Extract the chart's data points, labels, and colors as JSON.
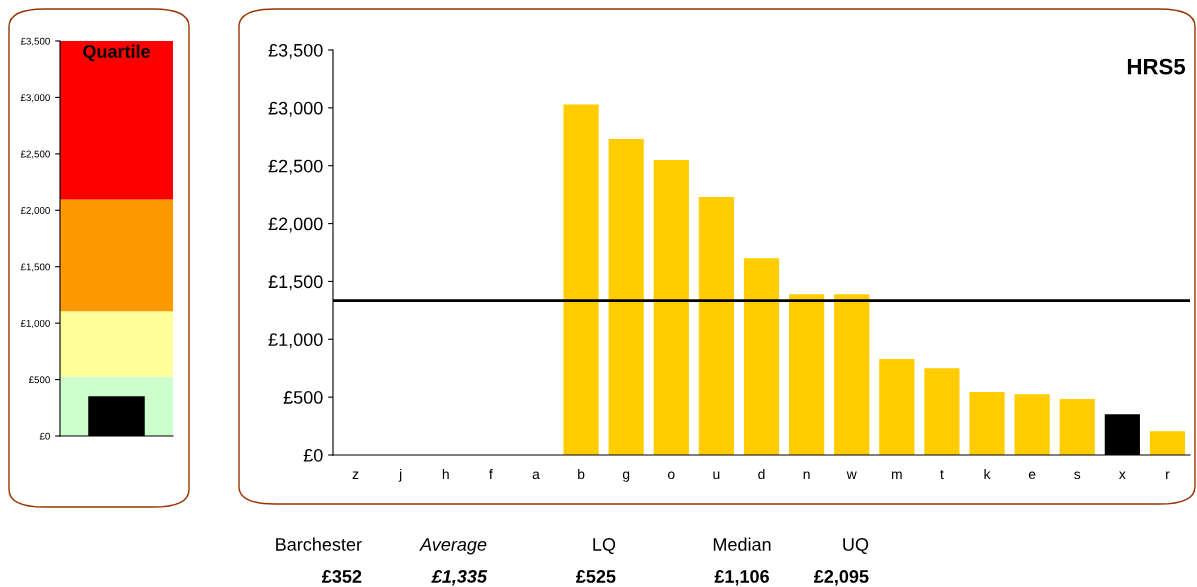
{
  "chart_data": [
    {
      "type": "bar",
      "title": "Quartile",
      "categories": [
        null
      ],
      "values": [
        352
      ],
      "colors": [
        "#000000"
      ],
      "ylim": [
        0,
        3500
      ],
      "yticks": [
        {
          "value": 0,
          "label": "£0"
        },
        {
          "value": 500,
          "label": "£500"
        },
        {
          "value": 1000,
          "label": "£1,000"
        },
        {
          "value": 1500,
          "label": "£1,500"
        },
        {
          "value": 2000,
          "label": "£2,000"
        },
        {
          "value": 2500,
          "label": "£2,500"
        },
        {
          "value": 3000,
          "label": "£3,000"
        },
        {
          "value": 3500,
          "label": "£3,500"
        }
      ],
      "bands": [
        {
          "axis": "y",
          "from": 0,
          "to": 525,
          "color": "#ccffcc"
        },
        {
          "axis": "y",
          "from": 525,
          "to": 1106,
          "color": "#ffff99"
        },
        {
          "axis": "y",
          "from": 1106,
          "to": 2095,
          "color": "#ff9900"
        },
        {
          "axis": "y",
          "from": 2095,
          "to": 3500,
          "color": "#ff0000"
        }
      ],
      "tick_labels": "y",
      "grid": false,
      "legend": false
    },
    {
      "type": "bar",
      "title": "HRS5",
      "categories": [
        "z",
        "j",
        "h",
        "f",
        "a",
        "b",
        "g",
        "o",
        "u",
        "d",
        "n",
        "w",
        "m",
        "t",
        "k",
        "e",
        "s",
        "x",
        "r"
      ],
      "values": [
        null,
        null,
        null,
        null,
        null,
        3030,
        2730,
        2550,
        2230,
        1700,
        1390,
        1390,
        830,
        750,
        545,
        525,
        485,
        352,
        205
      ],
      "colors": [
        "#ffcc00",
        "#ffcc00",
        "#ffcc00",
        "#ffcc00",
        "#ffcc00",
        "#ffcc00",
        "#ffcc00",
        "#ffcc00",
        "#ffcc00",
        "#ffcc00",
        "#ffcc00",
        "#ffcc00",
        "#ffcc00",
        "#ffcc00",
        "#ffcc00",
        "#ffcc00",
        "#ffcc00",
        "#000000",
        "#ffcc00"
      ],
      "ylim": [
        0,
        3500
      ],
      "yticks": [
        {
          "value": 0,
          "label": "£0"
        },
        {
          "value": 500,
          "label": "£500"
        },
        {
          "value": 1000,
          "label": "£1,000"
        },
        {
          "value": 1500,
          "label": "£1,500"
        },
        {
          "value": 2000,
          "label": "£2,000"
        },
        {
          "value": 2500,
          "label": "£2,500"
        },
        {
          "value": 3000,
          "label": "£3,000"
        },
        {
          "value": 3500,
          "label": "£3,500"
        }
      ],
      "ref_lines": [
        {
          "axis": "y",
          "value": 1335,
          "color": "#000000",
          "line_style": "solid"
        }
      ],
      "annotations": [
        "Barchester",
        "Average",
        "LQ",
        "Median",
        "UQ",
        "£352",
        "£1,335",
        "£525",
        "£1,106",
        "£2,095"
      ],
      "grid": false,
      "legend": false
    }
  ]
}
